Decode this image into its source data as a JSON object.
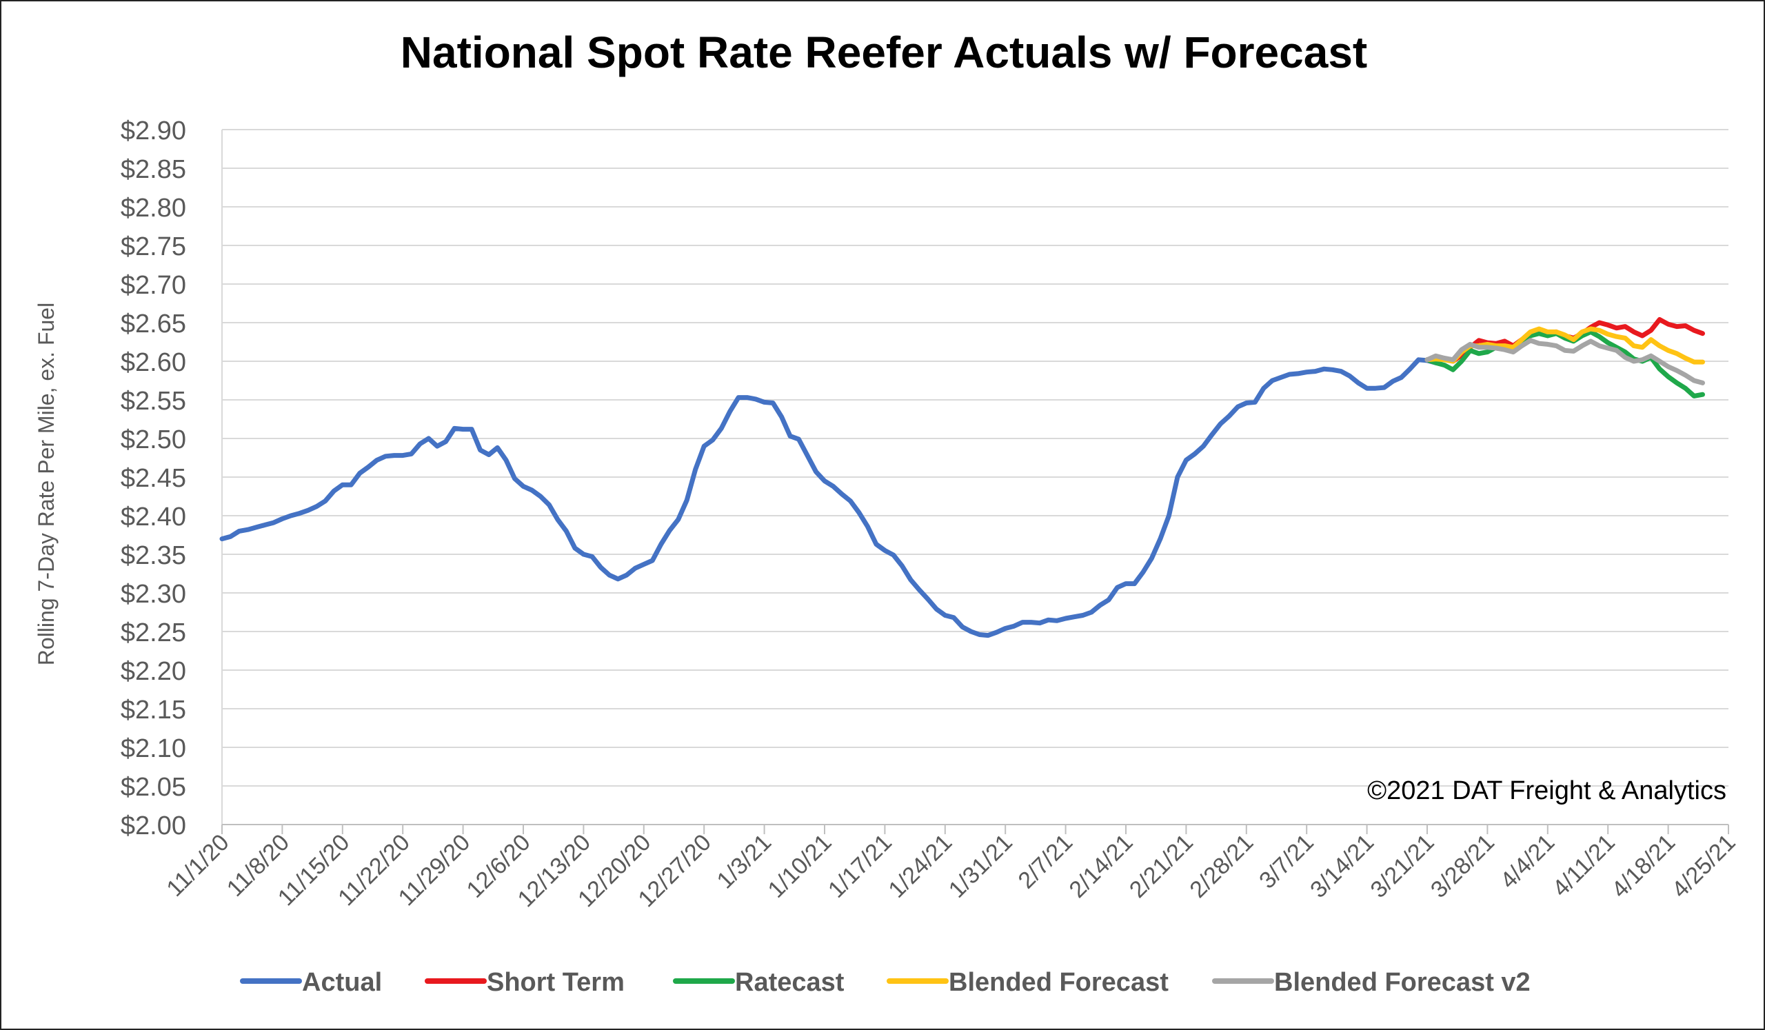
{
  "chart_data": {
    "type": "line",
    "title": "National Spot Rate Reefer Actuals w/ Forecast",
    "ylabel": "Rolling 7-Day Rate Per Mile, ex. Fuel",
    "xlabel": "",
    "watermark": "©2021 DAT Freight & Analytics",
    "ylim": [
      2.0,
      2.9
    ],
    "ytick_step": 0.05,
    "yticks": [
      "$2.00",
      "$2.05",
      "$2.10",
      "$2.15",
      "$2.20",
      "$2.25",
      "$2.30",
      "$2.35",
      "$2.40",
      "$2.45",
      "$2.50",
      "$2.55",
      "$2.60",
      "$2.65",
      "$2.70",
      "$2.75",
      "$2.80",
      "$2.85",
      "$2.90"
    ],
    "x_start": "2020-11-01",
    "x_end": "2021-04-25",
    "xticks": [
      {
        "date": "2020-11-01",
        "label": "11/1/20"
      },
      {
        "date": "2020-11-08",
        "label": "11/8/20"
      },
      {
        "date": "2020-11-15",
        "label": "11/15/20"
      },
      {
        "date": "2020-11-22",
        "label": "11/22/20"
      },
      {
        "date": "2020-11-29",
        "label": "11/29/20"
      },
      {
        "date": "2020-12-06",
        "label": "12/6/20"
      },
      {
        "date": "2020-12-13",
        "label": "12/13/20"
      },
      {
        "date": "2020-12-20",
        "label": "12/20/20"
      },
      {
        "date": "2020-12-27",
        "label": "12/27/20"
      },
      {
        "date": "2021-01-03",
        "label": "1/3/21"
      },
      {
        "date": "2021-01-10",
        "label": "1/10/21"
      },
      {
        "date": "2021-01-17",
        "label": "1/17/21"
      },
      {
        "date": "2021-01-24",
        "label": "1/24/21"
      },
      {
        "date": "2021-01-31",
        "label": "1/31/21"
      },
      {
        "date": "2021-02-07",
        "label": "2/7/21"
      },
      {
        "date": "2021-02-14",
        "label": "2/14/21"
      },
      {
        "date": "2021-02-21",
        "label": "2/21/21"
      },
      {
        "date": "2021-02-28",
        "label": "2/28/21"
      },
      {
        "date": "2021-03-07",
        "label": "3/7/21"
      },
      {
        "date": "2021-03-14",
        "label": "3/14/21"
      },
      {
        "date": "2021-03-21",
        "label": "3/21/21"
      },
      {
        "date": "2021-03-28",
        "label": "3/28/21"
      },
      {
        "date": "2021-04-04",
        "label": "4/4/21"
      },
      {
        "date": "2021-04-11",
        "label": "4/11/21"
      },
      {
        "date": "2021-04-18",
        "label": "4/18/21"
      },
      {
        "date": "2021-04-25",
        "label": "4/25/21"
      }
    ],
    "grid": true,
    "legend": "bottom",
    "series": [
      {
        "name": "Actual",
        "color": "#4472C4",
        "start": "2020-11-01",
        "values": [
          2.37,
          2.373,
          2.38,
          2.382,
          2.385,
          2.388,
          2.391,
          2.396,
          2.4,
          2.403,
          2.407,
          2.412,
          2.419,
          2.432,
          2.44,
          2.44,
          2.455,
          2.463,
          2.472,
          2.477,
          2.478,
          2.478,
          2.48,
          2.493,
          2.5,
          2.49,
          2.496,
          2.513,
          2.512,
          2.512,
          2.485,
          2.479,
          2.488,
          2.472,
          2.448,
          2.438,
          2.433,
          2.425,
          2.414,
          2.395,
          2.38,
          2.358,
          2.35,
          2.347,
          2.333,
          2.323,
          2.318,
          2.323,
          2.332,
          2.337,
          2.342,
          2.363,
          2.381,
          2.395,
          2.42,
          2.46,
          2.49,
          2.498,
          2.513,
          2.535,
          2.553,
          2.553,
          2.551,
          2.547,
          2.546,
          2.528,
          2.503,
          2.499,
          2.478,
          2.457,
          2.445,
          2.438,
          2.428,
          2.419,
          2.404,
          2.386,
          2.363,
          2.355,
          2.349,
          2.335,
          2.317,
          2.304,
          2.292,
          2.279,
          2.271,
          2.268,
          2.256,
          2.25,
          2.246,
          2.245,
          2.249,
          2.254,
          2.257,
          2.262,
          2.262,
          2.261,
          2.265,
          2.264,
          2.267,
          2.269,
          2.271,
          2.275,
          2.284,
          2.291,
          2.307,
          2.312,
          2.312,
          2.327,
          2.345,
          2.37,
          2.4,
          2.45,
          2.472,
          2.48,
          2.49,
          2.505,
          2.519,
          2.529,
          2.541,
          2.546,
          2.547,
          2.565,
          2.575,
          2.579,
          2.583,
          2.584,
          2.586,
          2.587,
          2.59,
          2.589,
          2.587,
          2.581,
          2.572,
          2.565,
          2.565,
          2.566,
          2.574,
          2.579,
          2.59,
          2.602,
          2.601,
          2.598
        ]
      },
      {
        "name": "Short Term",
        "color": "#E8191E",
        "start": "2021-03-21",
        "values": [
          2.602,
          2.605,
          2.603,
          2.6,
          2.608,
          2.618,
          2.627,
          2.624,
          2.623,
          2.626,
          2.62,
          2.628,
          2.635,
          2.64,
          2.637,
          2.638,
          2.633,
          2.63,
          2.636,
          2.644,
          2.65,
          2.647,
          2.643,
          2.645,
          2.638,
          2.633,
          2.64,
          2.654,
          2.648,
          2.645,
          2.646,
          2.64,
          2.636
        ]
      },
      {
        "name": "Ratecast",
        "color": "#1FA84A",
        "start": "2021-03-21",
        "values": [
          2.602,
          2.598,
          2.595,
          2.589,
          2.6,
          2.614,
          2.61,
          2.612,
          2.618,
          2.616,
          2.615,
          2.624,
          2.633,
          2.636,
          2.633,
          2.636,
          2.63,
          2.626,
          2.633,
          2.638,
          2.632,
          2.624,
          2.618,
          2.612,
          2.603,
          2.6,
          2.605,
          2.59,
          2.58,
          2.572,
          2.565,
          2.555,
          2.557
        ]
      },
      {
        "name": "Blended Forecast",
        "color": "#FFC314",
        "start": "2021-03-21",
        "values": [
          2.602,
          2.603,
          2.602,
          2.6,
          2.612,
          2.62,
          2.62,
          2.622,
          2.62,
          2.62,
          2.618,
          2.628,
          2.638,
          2.642,
          2.638,
          2.638,
          2.634,
          2.628,
          2.638,
          2.642,
          2.64,
          2.635,
          2.632,
          2.63,
          2.62,
          2.618,
          2.628,
          2.62,
          2.614,
          2.61,
          2.604,
          2.599,
          2.599
        ]
      },
      {
        "name": "Blended Forecast v2",
        "color": "#A5A5A5",
        "start": "2021-03-21",
        "values": [
          2.602,
          2.607,
          2.604,
          2.602,
          2.615,
          2.622,
          2.618,
          2.618,
          2.617,
          2.615,
          2.612,
          2.62,
          2.627,
          2.623,
          2.622,
          2.62,
          2.614,
          2.613,
          2.62,
          2.626,
          2.62,
          2.617,
          2.614,
          2.605,
          2.6,
          2.602,
          2.607,
          2.6,
          2.593,
          2.588,
          2.582,
          2.575,
          2.572
        ]
      }
    ]
  }
}
